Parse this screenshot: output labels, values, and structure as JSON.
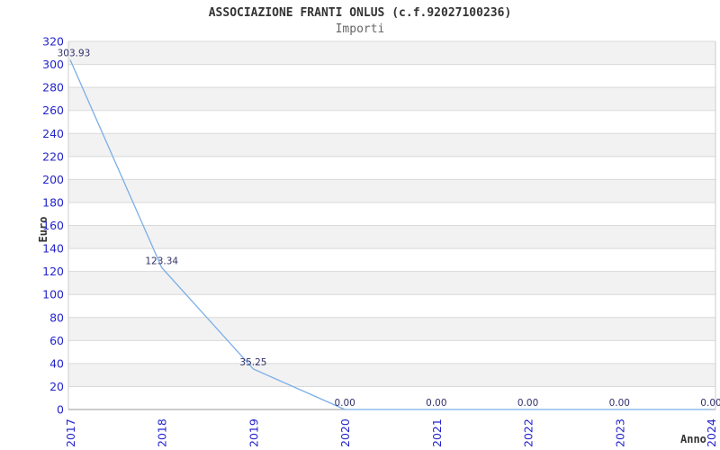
{
  "header": {
    "title": "ASSOCIAZIONE FRANTI ONLUS (c.f.92027100236)",
    "subtitle": "Importi"
  },
  "chart_data": {
    "type": "line",
    "title": "ASSOCIAZIONE FRANTI ONLUS (c.f.92027100236)",
    "subtitle": "Importi",
    "xlabel": "Anno",
    "ylabel": "Euro",
    "categories": [
      "2017",
      "2018",
      "2019",
      "2020",
      "2021",
      "2022",
      "2023",
      "2024"
    ],
    "series": [
      {
        "name": "Importi",
        "values": [
          303.93,
          123.34,
          35.25,
          0,
          0,
          0,
          0,
          0
        ]
      }
    ],
    "data_labels": [
      "303.93",
      "123.34",
      "35.25",
      "0.00",
      "0.00",
      "0.00",
      "0.00",
      "0.00"
    ],
    "ylim": [
      0,
      320
    ],
    "ytick_step": 20,
    "grid": true,
    "banded_background": true,
    "legend": "none"
  },
  "colors": {
    "line": "#7bafe6",
    "tick_label": "#2424cc",
    "data_label": "#31316b",
    "band_fill": "#f2f2f2",
    "gridline": "#d9d9d9",
    "plot_border": "#cccccc",
    "axis_line": "#999999",
    "title": "#333333",
    "subtitle": "#666666"
  }
}
